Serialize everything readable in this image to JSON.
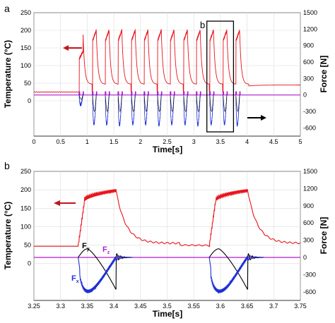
{
  "colors": {
    "temperature": "#e8131b",
    "fy": "#000000",
    "fx": "#1f2fd6",
    "fz": "#b01cd0",
    "arrow_red": "#c0151b"
  },
  "chart_data": [
    {
      "type": "line",
      "panel_label": "a",
      "xlabel": "Time[s]",
      "ylabel_left": "Temperature (°C)",
      "ylabel_right": "Force [N]",
      "xlim": [
        0,
        5
      ],
      "ylim_left": [
        -100,
        250
      ],
      "ylim_right": [
        -750,
        1500
      ],
      "x_ticks": [
        "0",
        "0.5",
        "1",
        "1.5",
        "2",
        "2.5",
        "3",
        "3.5",
        "4",
        "4.5",
        "5"
      ],
      "y_left_ticks": [
        "0",
        "50",
        "100",
        "150",
        "200",
        "250"
      ],
      "y_right_ticks": [
        "-600",
        "-300",
        "0",
        "300",
        "600",
        "900",
        "1200",
        "1500"
      ],
      "grid": true,
      "annotation": "b",
      "highlight_box": {
        "x_range": [
          3.25,
          3.75
        ],
        "label": "b"
      },
      "pulse_starts": [
        0.85,
        1.1,
        1.34,
        1.58,
        1.83,
        2.07,
        2.32,
        2.56,
        2.81,
        3.05,
        3.3,
        3.55,
        3.79
      ],
      "series": [
        {
          "name": "Temperature",
          "axis": "left",
          "baseline": 25,
          "peak": 200,
          "final_baseline": 45
        },
        {
          "name": "Fz",
          "axis": "right",
          "baseline": 0
        },
        {
          "name": "Fx",
          "axis": "right",
          "min": -650
        }
      ]
    },
    {
      "type": "line",
      "panel_label": "b",
      "xlabel": "Time[s]",
      "ylabel_left": "Temperature (°C)",
      "ylabel_right": "Force [N]",
      "xlim": [
        3.25,
        3.75
      ],
      "ylim_left": [
        -100,
        250
      ],
      "ylim_right": [
        -750,
        1500
      ],
      "x_ticks": [
        "3.25",
        "3.3",
        "3.35",
        "3.4",
        "3.45",
        "3.5",
        "3.55",
        "3.6",
        "3.65",
        "3.7",
        "3.75"
      ],
      "y_left_ticks": [
        "0",
        "50",
        "100",
        "150",
        "200",
        "250"
      ],
      "y_right_ticks": [
        "-600",
        "-300",
        "0",
        "300",
        "600",
        "900",
        "1200",
        "1500"
      ],
      "grid": true,
      "pulses": [
        {
          "start": 3.333,
          "end": 3.404
        },
        {
          "start": 3.579,
          "end": 3.651
        }
      ],
      "series": [
        {
          "name": "Temperature",
          "axis": "left",
          "baseline": 47,
          "peak": 200
        },
        {
          "name": "Fy",
          "axis": "right",
          "label_main": "F",
          "label_sub": "y",
          "max": 150,
          "min": -560
        },
        {
          "name": "Fx",
          "axis": "right",
          "label_main": "F",
          "label_sub": "x",
          "min": -620
        },
        {
          "name": "Fz",
          "axis": "right",
          "label_main": "F",
          "label_sub": "z",
          "baseline": 0
        }
      ]
    }
  ]
}
